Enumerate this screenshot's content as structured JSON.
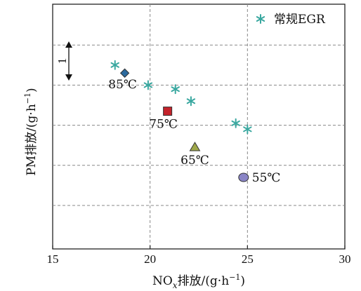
{
  "chart_data": {
    "type": "scatter",
    "xlabel_main": "NO",
    "xlabel_sub": "x",
    "xlabel_rest": "排放/(g·h",
    "xlabel_sup": "−1",
    "xlabel_close": ")",
    "ylabel_main": "PM排放/(g·h",
    "ylabel_sup": "−1",
    "ylabel_close": ")",
    "xlim": [
      15,
      30
    ],
    "x_ticks": [
      "15",
      "20",
      "25",
      "30"
    ],
    "grid": "dashed",
    "legend_position": "top-right",
    "scale_bar_label": "1",
    "series": [
      {
        "name": "常规EGR",
        "marker": "asterisk",
        "color": "#3aa8a0",
        "x": [
          18.2,
          19.9,
          21.3,
          22.1,
          24.4,
          25.0
        ],
        "y": [
          3.5,
          3.0,
          2.9,
          2.6,
          2.05,
          1.9
        ]
      }
    ],
    "points": [
      {
        "label": "85℃",
        "x": 18.7,
        "y": 3.3,
        "marker": "diamond",
        "color": "#2c6a9e"
      },
      {
        "label": "75℃",
        "x": 20.9,
        "y": 2.35,
        "marker": "square",
        "color": "#c4232b"
      },
      {
        "label": "65℃",
        "x": 22.3,
        "y": 1.45,
        "marker": "triangle",
        "color": "#9fa84a"
      },
      {
        "label": "55℃",
        "x": 24.8,
        "y": 0.7,
        "marker": "circle",
        "color": "#8a85c6"
      }
    ]
  }
}
